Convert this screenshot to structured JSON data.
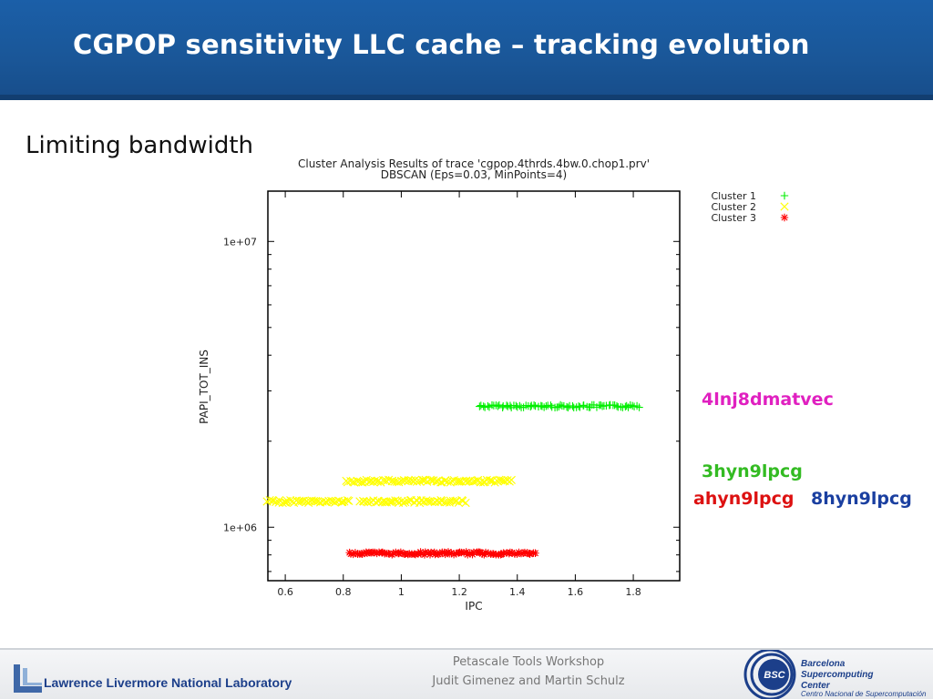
{
  "slide": {
    "title": "CGPOP sensitivity LLC cache – tracking evolution",
    "subtitle": "Limiting bandwidth"
  },
  "codes": [
    {
      "text": "4lnj8dmatvec",
      "color": "#e020c0"
    },
    {
      "text": "3hyn9lpcg",
      "color": "#33bb22"
    },
    {
      "text": "ahyn9lpcg",
      "color": "#dd1111"
    },
    {
      "text": "8hyn9lpcg",
      "color": "#1a3fa0"
    }
  ],
  "footer": {
    "left_org": "Lawrence Livermore National Laboratory",
    "center_line1": "Petascale Tools Workshop",
    "center_line2": "Judit Gimenez and Martin Schulz",
    "right_org_lines": [
      "Barcelona",
      "Supercomputing",
      "Center",
      "Centro Nacional de Supercomputación"
    ],
    "right_logo_text": "BSC"
  },
  "chart_data": {
    "type": "scatter",
    "title": "Cluster Analysis Results of trace 'cgpop.4thrds.4bw.0.chop1.prv'",
    "subtitle": "DBSCAN (Eps=0.03, MinPoints=4)",
    "xlabel": "IPC",
    "ylabel": "PAPI_TOT_INS",
    "xlim": [
      0.54,
      1.96
    ],
    "ylim": [
      650000,
      15000000
    ],
    "y_scale": "log",
    "x_ticks": [
      "0.6",
      "0.8",
      "1",
      "1.2",
      "1.4",
      "1.6",
      "1.8"
    ],
    "y_ticks": [
      "1e+06",
      "1e+07"
    ],
    "legend_position": "top-right-outside",
    "grid": false,
    "series": [
      {
        "name": "Cluster 1",
        "marker": "plus",
        "color": "#00ee00",
        "y": 2650000,
        "x_segments": [
          [
            1.27,
            1.82
          ]
        ]
      },
      {
        "name": "Cluster 2",
        "marker": "x",
        "color": "#ffff00",
        "y": [
          1450000,
          1230000
        ],
        "x_segments": [
          [
            [
              0.81,
              1.38
            ]
          ],
          [
            [
              0.54,
              0.82
            ],
            [
              0.86,
              1.22
            ]
          ]
        ]
      },
      {
        "name": "Cluster 3",
        "marker": "star",
        "color": "#ff0000",
        "y": 810000,
        "x_segments": [
          [
            0.82,
            1.46
          ]
        ]
      }
    ]
  }
}
